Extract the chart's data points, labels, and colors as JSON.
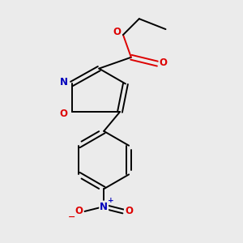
{
  "background_color": "#ebebeb",
  "bond_color": "#000000",
  "atom_colors": {
    "O": "#dd0000",
    "N": "#0000bb",
    "C": "#000000"
  },
  "line_width": 1.4,
  "figsize": [
    3.0,
    3.0
  ],
  "dpi": 100
}
